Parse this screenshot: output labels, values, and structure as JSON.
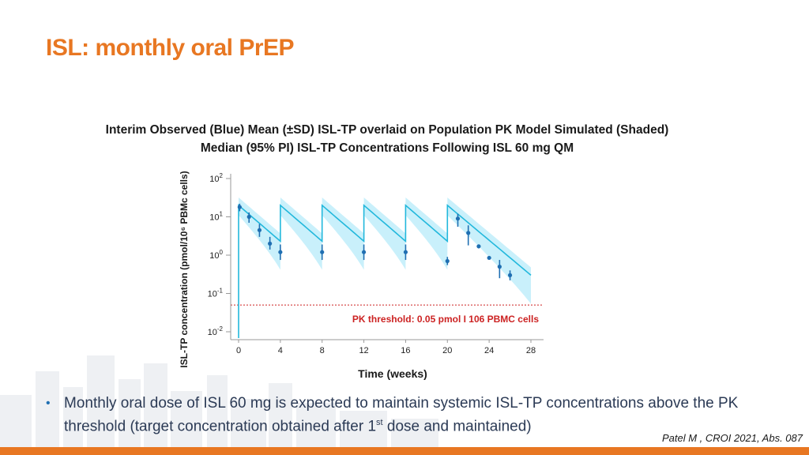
{
  "slide": {
    "title": "ISL: monthly oral PrEP",
    "subtitle_line1": "Interim Observed (Blue) Mean (±SD) ISL-TP overlaid on Population PK Model Simulated (Shaded)",
    "subtitle_line2": "Median (95% PI) ISL-TP Concentrations Following ISL 60 mg QM",
    "bullet_text_a": "Monthly oral dose of ISL 60 mg is expected to maintain systemic ISL-TP concentrations above the PK threshold (target concentration obtained after 1",
    "bullet_superscript": "st",
    "bullet_text_b": " dose and maintained)",
    "citation": "Patel M , CROI 2021, Abs. 087"
  },
  "colors": {
    "accent": "#e87722",
    "band": "#c9f0fb",
    "median_line": "#22b8dc",
    "observed": "#1f6fb2",
    "threshold": "#cc2222"
  },
  "chart_data": {
    "type": "line",
    "title": "Interim Observed (Blue) Mean (±SD) ISL-TP overlaid on Population PK Model Simulated (Shaded) Median (95% PI) ISL-TP Concentrations Following ISL 60 mg QM",
    "xlabel": "Time (weeks)",
    "ylabel": "ISL-TP concentration (pmol/10⁶ PBMc cells)",
    "y_scale": "log",
    "xlim": [
      0,
      28
    ],
    "ylim": [
      0.01,
      100
    ],
    "x_ticks": [
      0,
      4,
      8,
      12,
      16,
      20,
      24,
      28
    ],
    "y_ticks": [
      {
        "value": 100,
        "base": "10",
        "exp": "2"
      },
      {
        "value": 10,
        "base": "10",
        "exp": "1"
      },
      {
        "value": 1,
        "base": "10",
        "exp": "0"
      },
      {
        "value": 0.1,
        "base": "10",
        "exp": "-1"
      },
      {
        "value": 0.01,
        "base": "10",
        "exp": "-2"
      }
    ],
    "doses_weeks": [
      0,
      4,
      8,
      12,
      16,
      20
    ],
    "model": {
      "peak_median": 20,
      "decay_per_week": 0.54,
      "band_upper_factor": 1.6,
      "band_lower_factor_at_peak": 0.55,
      "band_lower_factor_at_trough": 0.18,
      "final_median_week": 28,
      "final_median_value": 0.3
    },
    "threshold": {
      "value": 0.05,
      "label": "PK threshold: 0.05 pmol I 106 PBMC cells"
    },
    "series": [
      {
        "name": "Observed mean (±SD)",
        "points": [
          {
            "x": 0.1,
            "y": 18,
            "lo": 14,
            "hi": 22
          },
          {
            "x": 1,
            "y": 10,
            "lo": 7,
            "hi": 13
          },
          {
            "x": 2,
            "y": 4.5,
            "lo": 3,
            "hi": 6.5
          },
          {
            "x": 3,
            "y": 2.0,
            "lo": 1.4,
            "hi": 3.0
          },
          {
            "x": 4,
            "y": 1.2,
            "lo": 0.75,
            "hi": 1.9
          },
          {
            "x": 8,
            "y": 1.2,
            "lo": 0.75,
            "hi": 1.9
          },
          {
            "x": 12,
            "y": 1.2,
            "lo": 0.75,
            "hi": 1.9
          },
          {
            "x": 16,
            "y": 1.2,
            "lo": 0.75,
            "hi": 1.9
          },
          {
            "x": 20,
            "y": 0.7,
            "lo": 0.55,
            "hi": 0.9
          },
          {
            "x": 21,
            "y": 9,
            "lo": 5.5,
            "hi": 12
          },
          {
            "x": 22,
            "y": 3.8,
            "lo": 1.8,
            "hi": 6
          },
          {
            "x": 23,
            "y": 1.7,
            "lo": 1.5,
            "hi": 1.9
          },
          {
            "x": 24,
            "y": 0.85,
            "lo": 0.85,
            "hi": 0.85
          },
          {
            "x": 25,
            "y": 0.5,
            "lo": 0.25,
            "hi": 0.75
          },
          {
            "x": 26,
            "y": 0.3,
            "lo": 0.22,
            "hi": 0.4
          }
        ]
      }
    ]
  }
}
